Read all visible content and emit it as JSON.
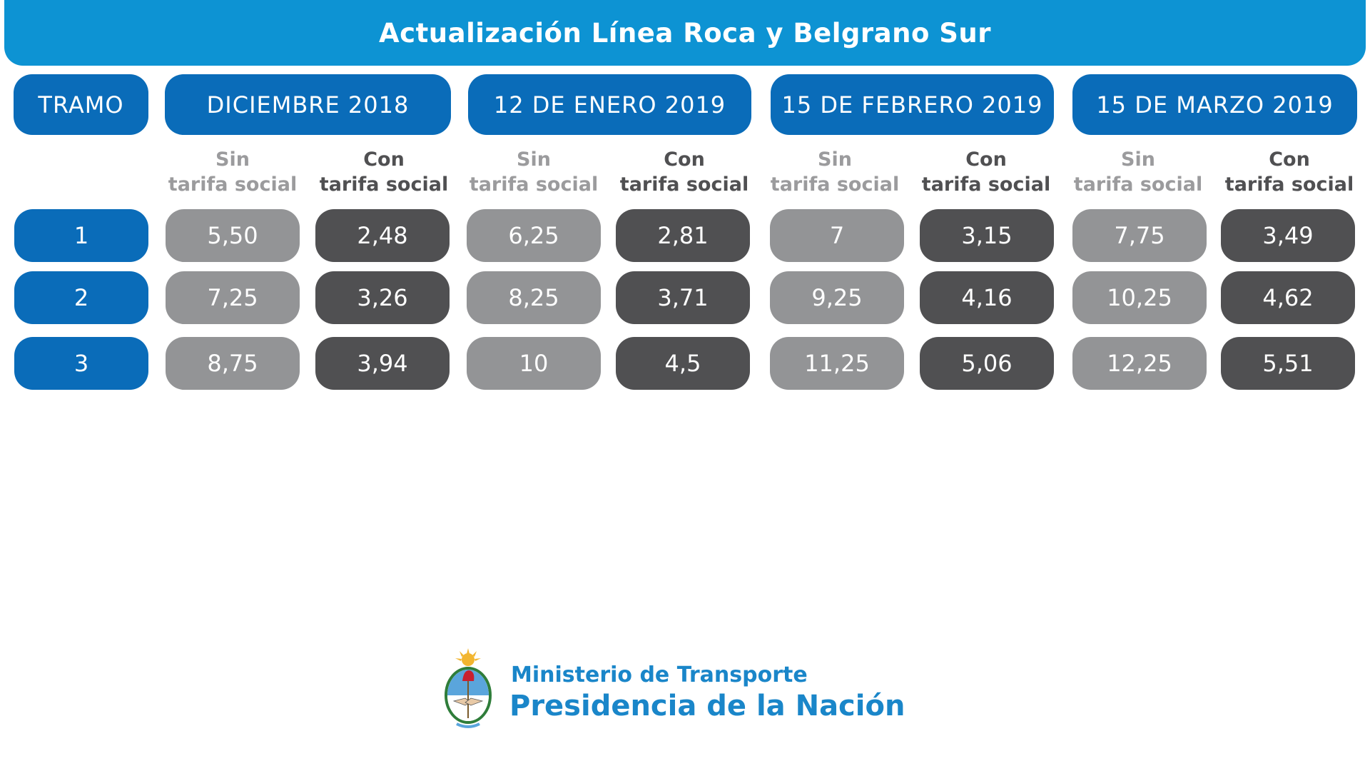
{
  "title": "Actualización Línea Roca y Belgrano Sur",
  "tramo_header": "TRAMO",
  "periods": [
    {
      "label": "DICIEMBRE 2018"
    },
    {
      "label": "12 DE ENERO 2019"
    },
    {
      "label": "15 DE FEBRERO 2019"
    },
    {
      "label": "15 DE MARZO 2019"
    }
  ],
  "subheaders": {
    "sin_line1": "Sin",
    "sin_line2": "tarifa social",
    "con_line1": "Con",
    "con_line2": "tarifa social"
  },
  "rows": [
    {
      "tramo": "1",
      "values": [
        "5,50",
        "2,48",
        "6,25",
        "2,81",
        "7",
        "3,15",
        "7,75",
        "3,49"
      ]
    },
    {
      "tramo": "2",
      "values": [
        "7,25",
        "3,26",
        "8,25",
        "3,71",
        "9,25",
        "4,16",
        "10,25",
        "4,62"
      ]
    },
    {
      "tramo": "3",
      "values": [
        "8,75",
        "3,94",
        "10",
        "4,5",
        "11,25",
        "5,06",
        "12,25",
        "5,51"
      ]
    }
  ],
  "footer": {
    "ministry": "Ministerio de Transporte",
    "presidencia": "Presidencia de la Nación",
    "seal_icon": "argentina-coat-of-arms-icon"
  },
  "colors": {
    "title_blue": "#0d93d3",
    "header_blue": "#0a6cb9",
    "sin_gray": "#939496",
    "con_dark": "#505052"
  }
}
